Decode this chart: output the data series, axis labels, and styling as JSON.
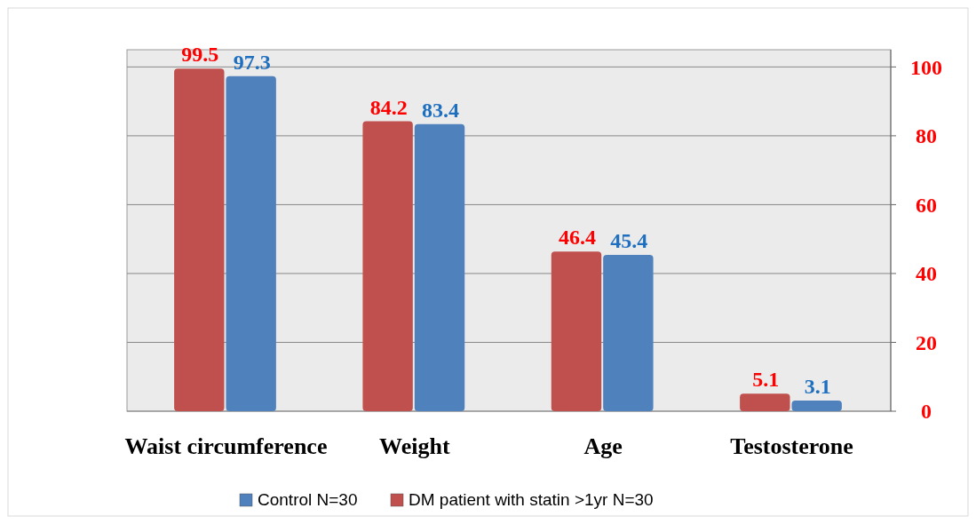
{
  "chart_data": {
    "type": "bar",
    "categories": [
      "Waist circumference",
      "Weight",
      "Age",
      "Testosterone"
    ],
    "series": [
      {
        "name": "Control N=30",
        "color": "#4f81bd",
        "values": [
          97.3,
          83.4,
          45.4,
          3.1
        ]
      },
      {
        "name": "DM patient with statin >1yr N=30",
        "color": "#c0504d",
        "values": [
          99.5,
          84.2,
          46.4,
          5.1
        ]
      }
    ],
    "ylim": [
      0,
      105
    ],
    "yticks": [
      0,
      20,
      40,
      60,
      80,
      100
    ],
    "grid": "y",
    "legend": "bottom",
    "data_labels": true
  }
}
